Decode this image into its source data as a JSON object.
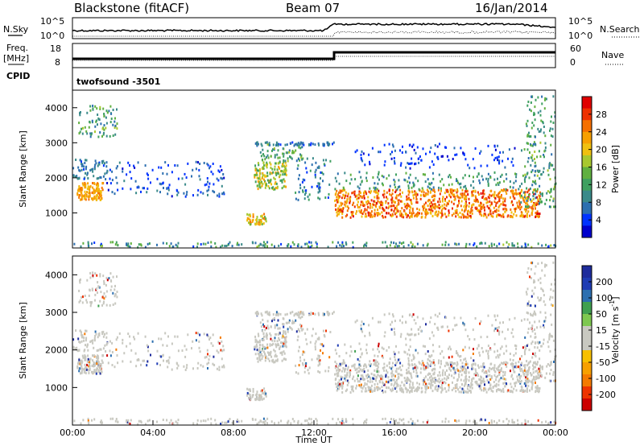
{
  "header": {
    "station": "Blackstone (fitACF)",
    "beam": "Beam 07",
    "date": "16/Jan/2014"
  },
  "summary": {
    "nsky_label": "N.Sky",
    "nsearch_label": "N.Search",
    "noise_tick_top": "10^5",
    "noise_tick_bottom": "10^0",
    "noise_tick_top_right": "10^5",
    "noise_tick_bottom_right": "10^0",
    "freq_label_1": "Freq.",
    "freq_label_2": "[MHz]",
    "freq_ticks": [
      "18",
      "8"
    ],
    "nave_label": "Nave",
    "nave_ticks": [
      "60",
      "0"
    ],
    "cpid_label": "CPID",
    "cpid_value": "twofsound  -3501"
  },
  "chart_data": [
    {
      "type": "heatmap",
      "title": "Power",
      "ylabel": "Slant Range [km]",
      "xlabel": "",
      "ylim": [
        0,
        4500
      ],
      "xlim": [
        "00:00",
        "24:00"
      ],
      "y_ticks": [
        "1000",
        "2000",
        "3000",
        "4000"
      ],
      "colorbar": {
        "label": "Power [dB]",
        "ticks": [
          "28",
          "24",
          "20",
          "16",
          "12",
          "8",
          "4"
        ],
        "range": [
          0,
          30
        ]
      }
    },
    {
      "type": "heatmap",
      "title": "Velocity",
      "ylabel": "Slant Range [km]",
      "xlabel": "Time UT",
      "ylim": [
        0,
        4500
      ],
      "xlim": [
        "00:00",
        "24:00"
      ],
      "x_ticks": [
        "00:00",
        "04:00",
        "08:00",
        "12:00",
        "16:00",
        "20:00",
        "00:00"
      ],
      "y_ticks": [
        "1000",
        "2000",
        "3000",
        "4000"
      ],
      "colorbar": {
        "label": "Velocity [m s",
        "label_sup": "-1",
        "ticks": [
          "200",
          "100",
          "50",
          "15",
          "-15",
          "-50",
          "-100",
          "-200"
        ],
        "range": [
          -250,
          250
        ]
      }
    }
  ]
}
